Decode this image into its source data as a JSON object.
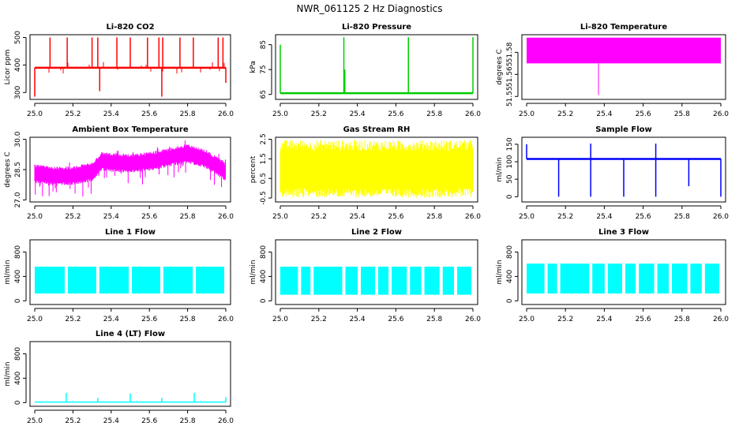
{
  "suptitle": "NWR_061125  2 Hz Diagnostics",
  "colors": {
    "red": "#ff0000",
    "green": "#00cc00",
    "magenta": "#ff00ff",
    "yellow": "#ffff00",
    "blue": "#0000ff",
    "cyan": "#00ffff"
  },
  "chart_data": [
    {
      "type": "line",
      "title": "Li-820 CO2",
      "ylabel": "Licor ppm",
      "color": "red",
      "xlim": [
        25.0,
        26.0
      ],
      "ylim": [
        275,
        510
      ],
      "xticks": [
        25.0,
        25.2,
        25.4,
        25.6,
        25.8,
        26.0
      ],
      "xtick_labels": [
        "25.0",
        "25.2",
        "25.4",
        "25.6",
        "25.8",
        "26.0"
      ],
      "yticks": [
        300,
        400,
        500
      ],
      "ytick_labels": [
        "300",
        "400",
        "500"
      ],
      "baseline": 390,
      "spikes_up": [
        {
          "x": 25.08,
          "y": 500
        },
        {
          "x": 25.17,
          "y": 500
        },
        {
          "x": 25.3,
          "y": 500
        },
        {
          "x": 25.33,
          "y": 500
        },
        {
          "x": 25.43,
          "y": 500
        },
        {
          "x": 25.5,
          "y": 500
        },
        {
          "x": 25.59,
          "y": 500
        },
        {
          "x": 25.65,
          "y": 500
        },
        {
          "x": 25.67,
          "y": 500
        },
        {
          "x": 25.76,
          "y": 500
        },
        {
          "x": 25.83,
          "y": 500
        },
        {
          "x": 25.96,
          "y": 500
        },
        {
          "x": 25.985,
          "y": 500
        }
      ],
      "spikes_down": [
        {
          "x": 25.0,
          "y": 285
        },
        {
          "x": 25.34,
          "y": 305
        },
        {
          "x": 25.665,
          "y": 285
        },
        {
          "x": 26.0,
          "y": 335
        }
      ]
    },
    {
      "type": "line",
      "title": "Li-820 Pressure",
      "ylabel": "kPa",
      "color": "green",
      "xlim": [
        25.0,
        26.0
      ],
      "ylim": [
        63,
        89
      ],
      "xticks": [
        25.0,
        25.2,
        25.4,
        25.6,
        25.8,
        26.0
      ],
      "xtick_labels": [
        "25.0",
        "25.2",
        "25.4",
        "25.6",
        "25.8",
        "26.0"
      ],
      "yticks": [
        65,
        75,
        85
      ],
      "ytick_labels": [
        "65",
        "75",
        "85"
      ],
      "baseline": 65.5,
      "spikes_up": [
        {
          "x": 25.0,
          "y": 85
        },
        {
          "x": 25.33,
          "y": 88
        },
        {
          "x": 25.335,
          "y": 75
        },
        {
          "x": 25.665,
          "y": 88
        },
        {
          "x": 26.0,
          "y": 88
        }
      ]
    },
    {
      "type": "area",
      "title": "Li-820 Temperature",
      "ylabel": "degrees C",
      "color": "magenta",
      "xlim": [
        25.0,
        26.0
      ],
      "ylim": [
        51.548,
        51.592
      ],
      "xticks": [
        25.0,
        25.2,
        25.4,
        25.6,
        25.8,
        26.0
      ],
      "xtick_labels": [
        "25.0",
        "25.2",
        "25.4",
        "25.6",
        "25.8",
        "26.0"
      ],
      "yticks": [
        51.55,
        51.565,
        51.58
      ],
      "ytick_labels": [
        "51.55",
        "51.565",
        "51.58"
      ],
      "band": [
        51.5725,
        51.59
      ],
      "dip": {
        "x": 25.37,
        "y": 51.551
      }
    },
    {
      "type": "area",
      "title": "Ambient Box Temperature",
      "ylabel": "degrees C",
      "color": "magenta",
      "xlim": [
        25.0,
        26.0
      ],
      "ylim": [
        26.9,
        30.1
      ],
      "xticks": [
        25.0,
        25.2,
        25.4,
        25.6,
        25.8,
        26.0
      ],
      "xtick_labels": [
        "25.0",
        "25.2",
        "25.4",
        "25.6",
        "25.8",
        "26.0"
      ],
      "yticks": [
        27.0,
        28.5,
        30.0
      ],
      "ytick_labels": [
        "27.0",
        "28.5",
        "30.0"
      ],
      "center": [
        {
          "x": 25.0,
          "y": 28.3
        },
        {
          "x": 25.1,
          "y": 28.2
        },
        {
          "x": 25.2,
          "y": 28.2
        },
        {
          "x": 25.3,
          "y": 28.4
        },
        {
          "x": 25.35,
          "y": 28.9
        },
        {
          "x": 25.5,
          "y": 28.8
        },
        {
          "x": 25.6,
          "y": 28.9
        },
        {
          "x": 25.7,
          "y": 29.1
        },
        {
          "x": 25.8,
          "y": 29.3
        },
        {
          "x": 25.9,
          "y": 29.0
        },
        {
          "x": 26.0,
          "y": 28.4
        }
      ]
    },
    {
      "type": "area",
      "title": "Gas Stream RH",
      "ylabel": "percent",
      "color": "yellow",
      "xlim": [
        25.0,
        26.0
      ],
      "ylim": [
        -0.7,
        2.6
      ],
      "xticks": [
        25.0,
        25.2,
        25.4,
        25.6,
        25.8,
        26.0
      ],
      "xtick_labels": [
        "25.0",
        "25.2",
        "25.4",
        "25.6",
        "25.8",
        "26.0"
      ],
      "yticks": [
        -0.5,
        0.5,
        1.5,
        2.5
      ],
      "ytick_labels": [
        "-0.5",
        "0.5",
        "1.5",
        "2.5"
      ],
      "band": [
        0.0,
        1.9
      ]
    },
    {
      "type": "line",
      "title": "Sample Flow",
      "ylabel": "ml/min",
      "color": "blue",
      "xlim": [
        25.0,
        26.0
      ],
      "ylim": [
        -15,
        170
      ],
      "xticks": [
        25.0,
        25.2,
        25.4,
        25.6,
        25.8,
        26.0
      ],
      "xtick_labels": [
        "25.0",
        "25.2",
        "25.4",
        "25.6",
        "25.8",
        "26.0"
      ],
      "yticks": [
        0,
        50,
        100,
        150
      ],
      "ytick_labels": [
        "0",
        "50",
        "100",
        "150"
      ],
      "baseline": 108,
      "spikes_up": [
        {
          "x": 25.0,
          "y": 150
        },
        {
          "x": 25.33,
          "y": 152
        },
        {
          "x": 25.665,
          "y": 152
        }
      ],
      "spikes_down": [
        {
          "x": 25.165,
          "y": 0
        },
        {
          "x": 25.33,
          "y": 0
        },
        {
          "x": 25.5,
          "y": 0
        },
        {
          "x": 25.665,
          "y": 0
        },
        {
          "x": 25.835,
          "y": 30
        },
        {
          "x": 26.0,
          "y": 0
        }
      ]
    },
    {
      "type": "area",
      "title": "Line 1 Flow",
      "ylabel": "ml/min",
      "color": "cyan",
      "xlim": [
        25.0,
        26.0
      ],
      "ylim": [
        -60,
        1000
      ],
      "xticks": [
        25.0,
        25.2,
        25.4,
        25.6,
        25.8,
        26.0
      ],
      "xtick_labels": [
        "25.0",
        "25.2",
        "25.4",
        "25.6",
        "25.8",
        "26.0"
      ],
      "yticks": [
        0,
        400,
        800
      ],
      "ytick_labels": [
        "0",
        "400",
        "800"
      ],
      "band": [
        120,
        560
      ],
      "gaps": [
        25.165,
        25.33,
        25.5,
        25.665,
        25.835
      ]
    },
    {
      "type": "area",
      "title": "Line 2 Flow",
      "ylabel": "ml/min",
      "color": "cyan",
      "xlim": [
        25.0,
        26.0
      ],
      "ylim": [
        -60,
        1000
      ],
      "xticks": [
        25.0,
        25.2,
        25.4,
        25.6,
        25.8,
        26.0
      ],
      "xtick_labels": [
        "25.0",
        "25.2",
        "25.4",
        "25.6",
        "25.8",
        "26.0"
      ],
      "yticks": [
        0,
        400,
        800
      ],
      "ytick_labels": [
        "0",
        "400",
        "800"
      ],
      "band": [
        100,
        560
      ],
      "gaps": [
        25.1,
        25.165,
        25.33,
        25.41,
        25.5,
        25.57,
        25.665,
        25.74,
        25.835,
        25.91
      ]
    },
    {
      "type": "area",
      "title": "Line 3 Flow",
      "ylabel": "ml/min",
      "color": "cyan",
      "xlim": [
        25.0,
        26.0
      ],
      "ylim": [
        -60,
        1000
      ],
      "xticks": [
        25.0,
        25.2,
        25.4,
        25.6,
        25.8,
        26.0
      ],
      "xtick_labels": [
        "25.0",
        "25.2",
        "25.4",
        "25.6",
        "25.8",
        "26.0"
      ],
      "yticks": [
        0,
        400,
        800
      ],
      "ytick_labels": [
        "0",
        "400",
        "800"
      ],
      "band": [
        120,
        610
      ],
      "gaps": [
        25.1,
        25.165,
        25.33,
        25.41,
        25.5,
        25.57,
        25.665,
        25.74,
        25.835,
        25.91
      ]
    },
    {
      "type": "line",
      "title": "Line 4 (LT) Flow",
      "ylabel": "ml/min",
      "color": "cyan",
      "xlim": [
        25.0,
        26.0
      ],
      "ylim": [
        -60,
        1000
      ],
      "xticks": [
        25.0,
        25.2,
        25.4,
        25.6,
        25.8,
        26.0
      ],
      "xtick_labels": [
        "25.0",
        "25.2",
        "25.4",
        "25.6",
        "25.8",
        "26.0"
      ],
      "yticks": [
        0,
        400,
        800
      ],
      "ytick_labels": [
        "0",
        "400",
        "800"
      ],
      "baseline": 10,
      "spikes_up": [
        {
          "x": 25.165,
          "y": 160
        },
        {
          "x": 25.33,
          "y": 80
        },
        {
          "x": 25.5,
          "y": 150
        },
        {
          "x": 25.665,
          "y": 80
        },
        {
          "x": 25.835,
          "y": 160
        },
        {
          "x": 26.0,
          "y": 90
        }
      ]
    }
  ]
}
